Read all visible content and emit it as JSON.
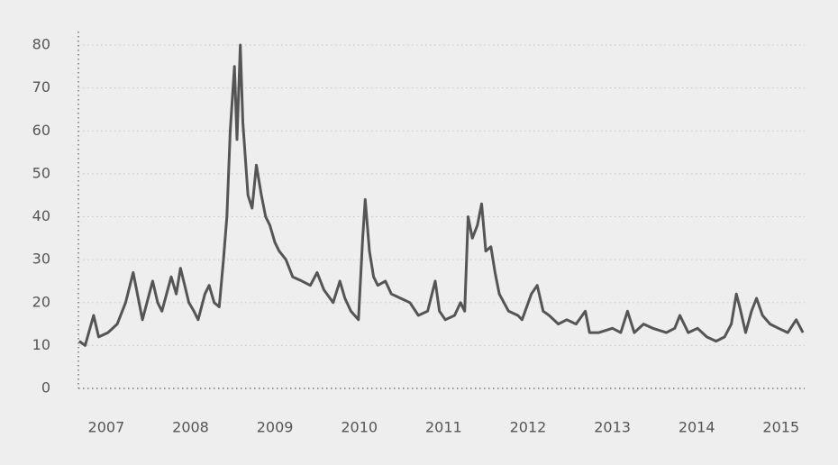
{
  "chart_data": {
    "type": "line",
    "x": [
      2006.68,
      2006.75,
      2006.85,
      2006.91,
      2007.02,
      2007.13,
      2007.23,
      2007.32,
      2007.43,
      2007.55,
      2007.61,
      2007.66,
      2007.77,
      2007.83,
      2007.88,
      2007.93,
      2007.98,
      2008.04,
      2008.09,
      2008.17,
      2008.22,
      2008.28,
      2008.34,
      2008.39,
      2008.43,
      2008.47,
      2008.52,
      2008.55,
      2008.59,
      2008.62,
      2008.68,
      2008.73,
      2008.78,
      2008.84,
      2008.89,
      2008.94,
      2009.0,
      2009.05,
      2009.13,
      2009.21,
      2009.32,
      2009.42,
      2009.5,
      2009.58,
      2009.69,
      2009.77,
      2009.83,
      2009.9,
      2009.99,
      2010.04,
      2010.07,
      2010.12,
      2010.17,
      2010.22,
      2010.31,
      2010.38,
      2010.49,
      2010.6,
      2010.7,
      2010.81,
      2010.9,
      2010.95,
      2011.02,
      2011.13,
      2011.2,
      2011.25,
      2011.29,
      2011.34,
      2011.4,
      2011.45,
      2011.5,
      2011.56,
      2011.61,
      2011.66,
      2011.77,
      2011.88,
      2011.93,
      2012.04,
      2012.11,
      2012.18,
      2012.25,
      2012.36,
      2012.46,
      2012.57,
      2012.68,
      2012.73,
      2012.84,
      2013.0,
      2013.1,
      2013.18,
      2013.26,
      2013.37,
      2013.48,
      2013.64,
      2013.74,
      2013.8,
      2013.9,
      2014.01,
      2014.12,
      2014.23,
      2014.33,
      2014.41,
      2014.47,
      2014.51,
      2014.58,
      2014.65,
      2014.71,
      2014.78,
      2014.87,
      2014.97,
      2015.08,
      2015.18,
      2015.26
    ],
    "series": [
      {
        "color": "#555555",
        "values": [
          11,
          10,
          17,
          12,
          13,
          15,
          20,
          27,
          16,
          25,
          20,
          18,
          26,
          22,
          28,
          24,
          20,
          18,
          16,
          22,
          24,
          20,
          19,
          30,
          40,
          60,
          75,
          58,
          80,
          62,
          45,
          42,
          52,
          45,
          40,
          38,
          34,
          32,
          30,
          26,
          25,
          24,
          27,
          23,
          20,
          25,
          21,
          18,
          16,
          35,
          44,
          32,
          26,
          24,
          25,
          22,
          21,
          20,
          17,
          18,
          25,
          18,
          16,
          17,
          20,
          18,
          40,
          35,
          38,
          43,
          32,
          33,
          27,
          22,
          18,
          17,
          16,
          22,
          24,
          18,
          17,
          15,
          16,
          15,
          18,
          13,
          13,
          14,
          13,
          18,
          13,
          15,
          14,
          13,
          14,
          17,
          13,
          14,
          12,
          11,
          12,
          15,
          22,
          19,
          13,
          18,
          21,
          17,
          15,
          14,
          13,
          16,
          13
        ]
      }
    ],
    "xlim": [
      2006.67,
      2015.28
    ],
    "xticks": [
      2007,
      2008,
      2009,
      2010,
      2011,
      2012,
      2013,
      2014,
      2015
    ],
    "ylim": [
      0,
      80
    ],
    "yticks": [
      0,
      10,
      20,
      30,
      40,
      50,
      60,
      70,
      80
    ],
    "grid": true
  }
}
